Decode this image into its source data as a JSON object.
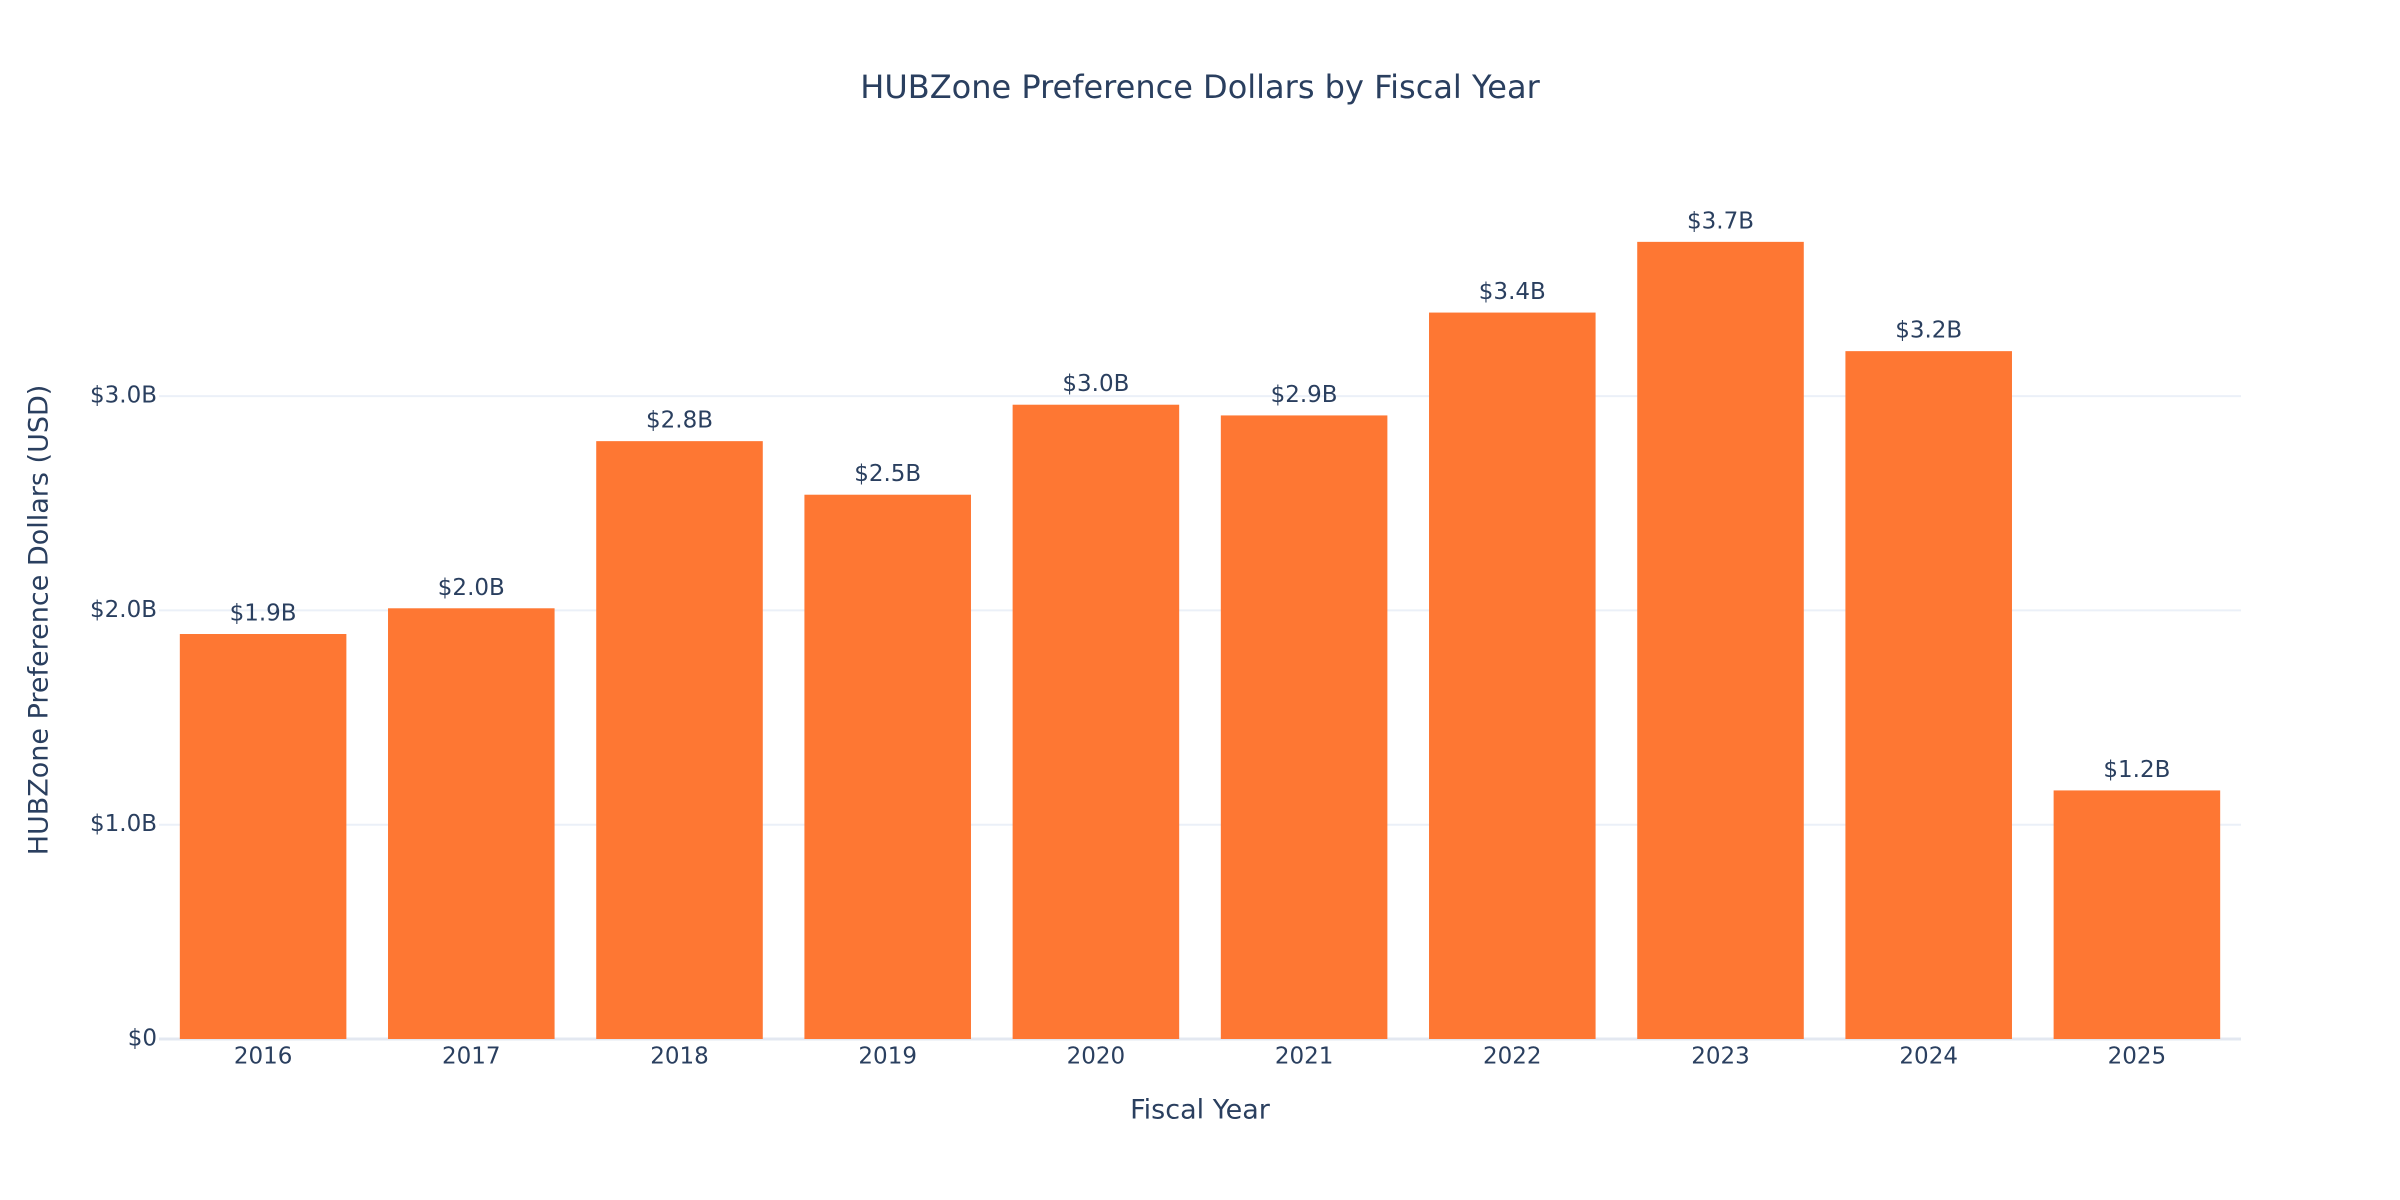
{
  "chart_data": {
    "type": "bar",
    "title": "HUBZone Preference Dollars by Fiscal Year",
    "x_label": "Fiscal Year",
    "y_label": "HUBZone Preference Dollars (USD)",
    "categories": [
      "2016",
      "2017",
      "2018",
      "2019",
      "2020",
      "2021",
      "2022",
      "2023",
      "2024",
      "2025"
    ],
    "values": [
      1890000000,
      2010000000,
      2790000000,
      2540000000,
      2960000000,
      2910000000,
      3390000000,
      3720000000,
      3210000000,
      1160000000
    ],
    "value_labels": [
      "$1.9B",
      "$2.0B",
      "$2.8B",
      "$2.5B",
      "$3.0B",
      "$2.9B",
      "$3.4B",
      "$3.7B",
      "$3.2B",
      "$1.2B"
    ],
    "color": "#fe7733",
    "ylim": [
      0,
      3920000000
    ],
    "yticks": [
      {
        "value": 0,
        "label": "$0"
      },
      {
        "value": 1000000000,
        "label": "$1.0B"
      },
      {
        "value": 2000000000,
        "label": "$2.0B"
      },
      {
        "value": 3000000000,
        "label": "$3.0B"
      }
    ],
    "grid": true
  }
}
